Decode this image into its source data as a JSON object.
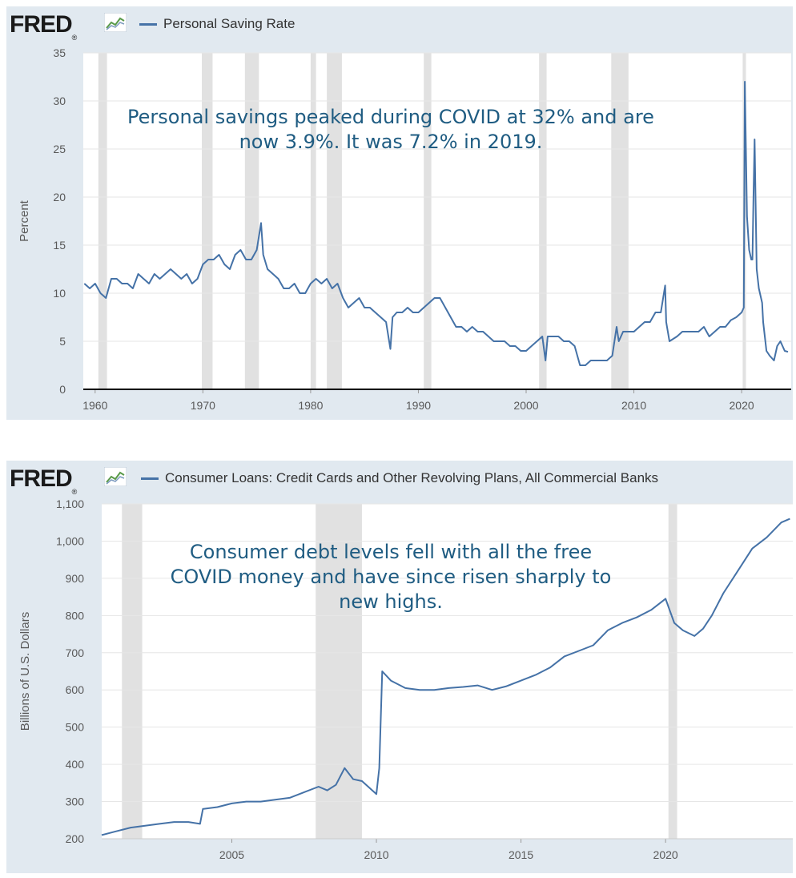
{
  "charts": [
    {
      "logo": "FRED",
      "legend": "Personal Saving Rate",
      "ylabel": "Percent",
      "annotation_lines": [
        "Personal savings peaked during COVID at 32% and are",
        "now 3.9%. It was 7.2% in 2019."
      ]
    },
    {
      "logo": "FRED",
      "legend": "Consumer Loans: Credit Cards and Other Revolving Plans, All Commercial Banks",
      "ylabel": "Billions of U.S. Dollars",
      "annotation_lines": [
        "Consumer debt levels fell with all the free",
        "COVID money and have since risen sharply to",
        "new highs."
      ]
    }
  ],
  "colors": {
    "line": "#4572a7",
    "background": "#e1e9f0",
    "plot": "#ffffff",
    "recession": "#e1e1e1",
    "annotation": "#1f5c82"
  },
  "chart_data": [
    {
      "type": "line",
      "title": "",
      "xlabel": "",
      "ylabel": "Percent",
      "series": [
        {
          "name": "Personal Saving Rate",
          "x": [
            1959.0,
            1959.5,
            1960.0,
            1960.5,
            1961.0,
            1961.5,
            1962.0,
            1962.5,
            1963.0,
            1963.5,
            1964.0,
            1964.5,
            1965.0,
            1965.5,
            1966.0,
            1966.5,
            1967.0,
            1967.5,
            1968.0,
            1968.5,
            1969.0,
            1969.5,
            1970.0,
            1970.5,
            1971.0,
            1971.5,
            1972.0,
            1972.5,
            1973.0,
            1973.5,
            1974.0,
            1974.5,
            1975.0,
            1975.4,
            1975.6,
            1976.0,
            1976.5,
            1977.0,
            1977.5,
            1978.0,
            1978.5,
            1979.0,
            1979.5,
            1980.0,
            1980.5,
            1981.0,
            1981.5,
            1982.0,
            1982.5,
            1983.0,
            1983.5,
            1984.0,
            1984.5,
            1985.0,
            1985.5,
            1986.0,
            1986.5,
            1987.0,
            1987.4,
            1987.6,
            1988.0,
            1988.5,
            1989.0,
            1989.5,
            1990.0,
            1990.5,
            1991.0,
            1991.5,
            1992.0,
            1992.5,
            1993.0,
            1993.5,
            1994.0,
            1994.5,
            1995.0,
            1995.5,
            1996.0,
            1996.5,
            1997.0,
            1997.5,
            1998.0,
            1998.5,
            1999.0,
            1999.5,
            2000.0,
            2000.5,
            2001.0,
            2001.5,
            2001.8,
            2002.0,
            2002.5,
            2003.0,
            2003.5,
            2004.0,
            2004.5,
            2005.0,
            2005.5,
            2006.0,
            2006.5,
            2007.0,
            2007.5,
            2008.0,
            2008.4,
            2008.6,
            2009.0,
            2009.5,
            2010.0,
            2010.5,
            2011.0,
            2011.5,
            2012.0,
            2012.5,
            2012.9,
            2013.0,
            2013.3,
            2014.0,
            2014.5,
            2015.0,
            2015.5,
            2016.0,
            2016.5,
            2017.0,
            2017.5,
            2018.0,
            2018.5,
            2019.0,
            2019.5,
            2020.0,
            2020.2,
            2020.3,
            2020.5,
            2020.7,
            2020.9,
            2021.0,
            2021.1,
            2021.2,
            2021.4,
            2021.6,
            2021.9,
            2022.0,
            2022.3,
            2022.6,
            2023.0,
            2023.3,
            2023.6,
            2024.0,
            2024.3
          ],
          "values": [
            11.0,
            10.5,
            11.0,
            10.0,
            9.5,
            11.5,
            11.5,
            11.0,
            11.0,
            10.5,
            12.0,
            11.5,
            11.0,
            12.0,
            11.5,
            12.0,
            12.5,
            12.0,
            11.5,
            12.0,
            11.0,
            11.5,
            13.0,
            13.5,
            13.5,
            14.0,
            13.0,
            12.5,
            14.0,
            14.5,
            13.5,
            13.5,
            14.5,
            17.3,
            14.0,
            12.5,
            12.0,
            11.5,
            10.5,
            10.5,
            11.0,
            10.0,
            10.0,
            11.0,
            11.5,
            11.0,
            11.5,
            10.5,
            11.0,
            9.5,
            8.5,
            9.0,
            9.5,
            8.5,
            8.5,
            8.0,
            7.5,
            7.0,
            4.2,
            7.5,
            8.0,
            8.0,
            8.5,
            8.0,
            8.0,
            8.5,
            9.0,
            9.5,
            9.5,
            8.5,
            7.5,
            6.5,
            6.5,
            6.0,
            6.5,
            6.0,
            6.0,
            5.5,
            5.0,
            5.0,
            5.0,
            4.5,
            4.5,
            4.0,
            4.0,
            4.5,
            5.0,
            5.5,
            3.0,
            5.5,
            5.5,
            5.5,
            5.0,
            5.0,
            4.5,
            2.5,
            2.5,
            3.0,
            3.0,
            3.0,
            3.0,
            3.5,
            6.5,
            5.0,
            6.0,
            6.0,
            6.0,
            6.5,
            7.0,
            7.0,
            8.0,
            8.0,
            10.8,
            7.0,
            5.0,
            5.5,
            6.0,
            6.0,
            6.0,
            6.0,
            6.5,
            5.5,
            6.0,
            6.5,
            6.5,
            7.2,
            7.5,
            8.0,
            8.5,
            32.0,
            18.0,
            14.5,
            13.5,
            13.5,
            20.0,
            26.0,
            12.5,
            10.5,
            9.0,
            7.0,
            4.0,
            3.5,
            3.0,
            4.5,
            5.0,
            4.0,
            3.9
          ]
        }
      ],
      "xlim": [
        1958.9,
        2024.6
      ],
      "ylim": [
        0,
        35
      ],
      "xticks": [
        1960,
        1970,
        1980,
        1990,
        2000,
        2010,
        2020
      ],
      "yticks": [
        0,
        5,
        10,
        15,
        20,
        25,
        30,
        35
      ],
      "recessions": [
        [
          1960.3,
          1961.1
        ],
        [
          1969.9,
          1970.9
        ],
        [
          1973.9,
          1975.2
        ],
        [
          1980.0,
          1980.5
        ],
        [
          1981.5,
          1982.9
        ],
        [
          1990.5,
          1991.2
        ],
        [
          2001.2,
          2001.9
        ],
        [
          2007.9,
          2009.5
        ],
        [
          2020.1,
          2020.4
        ]
      ],
      "grid": true,
      "legend": "top-left"
    },
    {
      "type": "line",
      "title": "",
      "xlabel": "",
      "ylabel": "Billions of U.S. Dollars",
      "series": [
        {
          "name": "Consumer Loans: Credit Cards and Other Revolving Plans, All Commercial Banks",
          "x": [
            2000.5,
            2001.0,
            2001.5,
            2002.0,
            2002.5,
            2003.0,
            2003.5,
            2003.9,
            2004.0,
            2004.5,
            2005.0,
            2005.5,
            2006.0,
            2006.5,
            2007.0,
            2007.5,
            2008.0,
            2008.3,
            2008.6,
            2008.9,
            2009.2,
            2009.5,
            2010.0,
            2010.1,
            2010.2,
            2010.5,
            2011.0,
            2011.5,
            2012.0,
            2012.5,
            2013.0,
            2013.5,
            2014.0,
            2014.5,
            2015.0,
            2015.5,
            2016.0,
            2016.5,
            2017.0,
            2017.5,
            2018.0,
            2018.5,
            2019.0,
            2019.5,
            2020.0,
            2020.3,
            2020.6,
            2021.0,
            2021.3,
            2021.6,
            2022.0,
            2022.5,
            2023.0,
            2023.5,
            2024.0,
            2024.3
          ],
          "values": [
            210,
            220,
            230,
            235,
            240,
            245,
            245,
            240,
            280,
            285,
            295,
            300,
            300,
            305,
            310,
            325,
            340,
            330,
            345,
            390,
            360,
            355,
            320,
            390,
            650,
            625,
            605,
            600,
            600,
            605,
            608,
            612,
            600,
            610,
            625,
            640,
            660,
            690,
            705,
            720,
            760,
            780,
            795,
            815,
            845,
            780,
            760,
            745,
            765,
            800,
            860,
            920,
            980,
            1010,
            1050,
            1060
          ]
        }
      ],
      "xlim": [
        2000.5,
        2024.4
      ],
      "ylim": [
        200,
        1100
      ],
      "xticks": [
        2005,
        2010,
        2015,
        2020
      ],
      "yticks": [
        200,
        300,
        400,
        500,
        600,
        700,
        800,
        900,
        1000,
        1100
      ],
      "ytick_labels": [
        "200",
        "300",
        "400",
        "500",
        "600",
        "700",
        "800",
        "900",
        "1,000",
        "1,100"
      ],
      "recessions": [
        [
          2001.2,
          2001.9
        ],
        [
          2007.9,
          2009.5
        ],
        [
          2020.1,
          2020.4
        ]
      ],
      "grid": true,
      "legend": "top-left"
    }
  ]
}
